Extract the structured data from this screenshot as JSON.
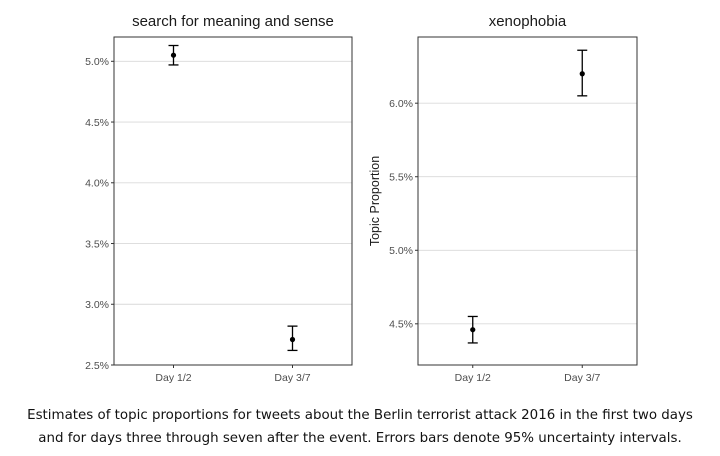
{
  "chart_data": [
    {
      "type": "scatter",
      "title": "search for meaning and sense",
      "categories": [
        "Day 1/2",
        "Day 3/7"
      ],
      "values": [
        5.05,
        2.71
      ],
      "error_lower": [
        4.97,
        2.62
      ],
      "error_upper": [
        5.13,
        2.82
      ],
      "xlabel": "",
      "ylabel": "",
      "ylim": [
        2.5,
        5.2
      ],
      "yticks": [
        2.5,
        3.0,
        3.5,
        4.0,
        4.5,
        5.0
      ],
      "ytick_labels": [
        "2.5%",
        "3.0%",
        "3.5%",
        "4.0%",
        "4.5%",
        "5.0%"
      ],
      "grid": true
    },
    {
      "type": "scatter",
      "title": "xenophobia",
      "categories": [
        "Day 1/2",
        "Day 3/7"
      ],
      "values": [
        4.46,
        6.2
      ],
      "error_lower": [
        4.37,
        6.05
      ],
      "error_upper": [
        4.55,
        6.36
      ],
      "xlabel": "",
      "ylabel": "Topic Proportion",
      "ylim": [
        4.22,
        6.45
      ],
      "yticks": [
        4.5,
        5.0,
        5.5,
        6.0
      ],
      "ytick_labels": [
        "4.5%",
        "5.0%",
        "5.5%",
        "6.0%"
      ],
      "grid": true
    }
  ],
  "caption": {
    "line1": "Estimates of topic proportions for tweets about the Berlin terrorist attack 2016 in the first two days",
    "line2": "and for days three through seven after the event. Errors bars denote 95% uncertainty intervals."
  }
}
